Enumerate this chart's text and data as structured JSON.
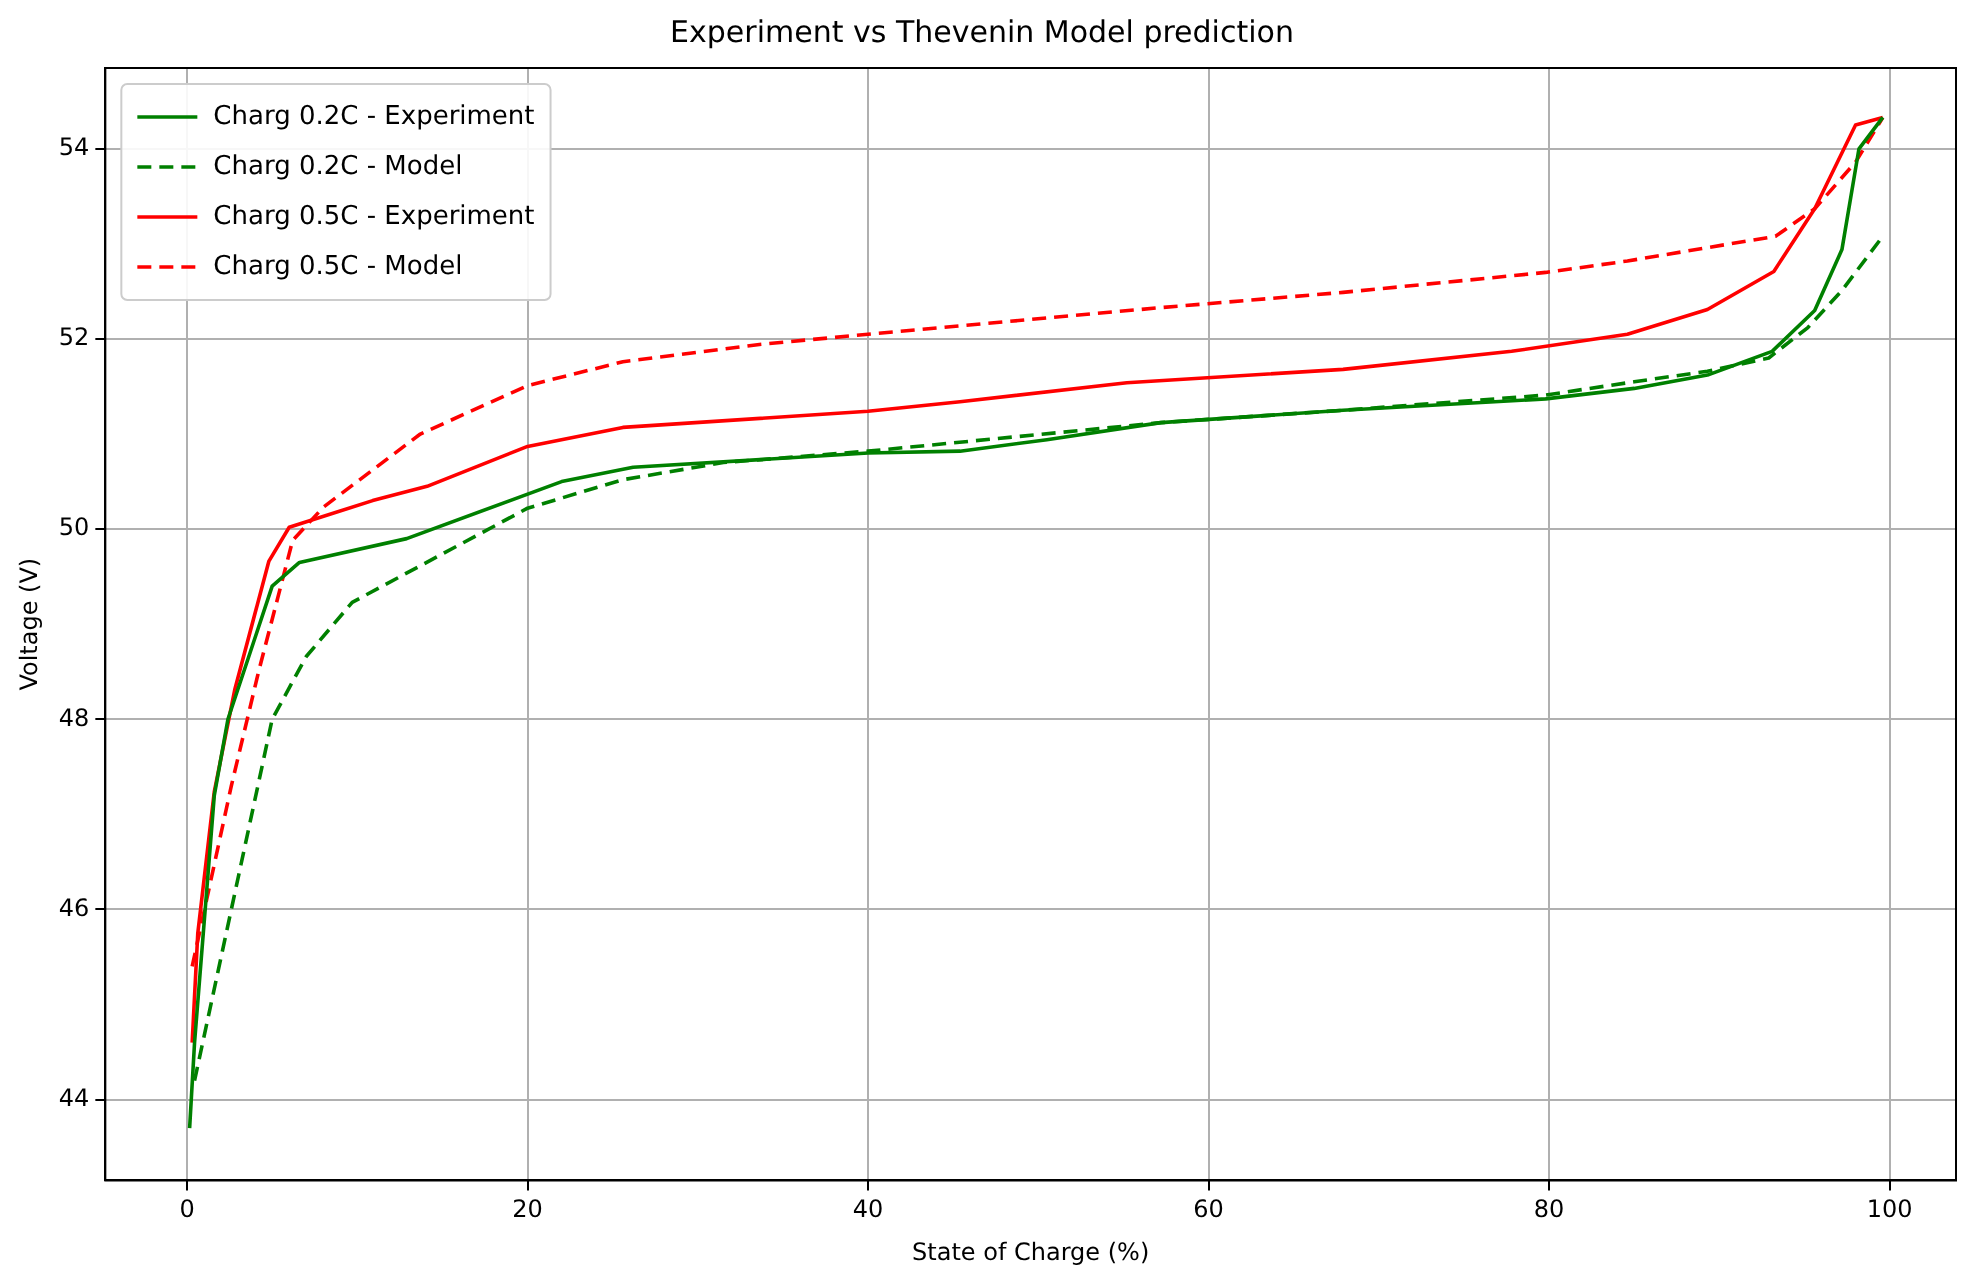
{
  "chart_data": {
    "type": "line",
    "title": "Experiment vs Thevenin Model prediction",
    "xlabel": "State of Charge (%)",
    "ylabel": "Voltage (V)",
    "xlim": [
      -4.8,
      103.9
    ],
    "ylim": [
      43.15,
      54.85
    ],
    "xticks": [
      0,
      20,
      40,
      60,
      80,
      100
    ],
    "yticks": [
      44,
      46,
      48,
      50,
      52,
      54
    ],
    "grid": true,
    "legend": "top left",
    "marker": "none",
    "series": [
      {
        "name": "Charg 0.2C - Experiment",
        "color": "#008000",
        "line_style": "solid",
        "x": [
          0.15,
          0.44,
          1.6,
          2.4,
          5.0,
          6.6,
          12.9,
          22,
          26.2,
          40,
          45.4,
          50.5,
          57.2,
          67.9,
          79.8,
          85,
          89.3,
          93.1,
          95.6,
          97.2,
          98.2,
          99.6
        ],
        "values": [
          43.7,
          44.6,
          47.2,
          48.0,
          49.4,
          49.65,
          49.9,
          50.5,
          50.65,
          50.8,
          50.82,
          50.94,
          51.12,
          51.25,
          51.37,
          51.48,
          51.62,
          51.87,
          52.3,
          52.94,
          54.0,
          54.33
        ]
      },
      {
        "name": "Charg 0.2C - Model",
        "color": "#008000",
        "line_style": "dashed",
        "x": [
          0.44,
          2.6,
          5.0,
          7.0,
          9.7,
          20,
          25.6,
          31.5,
          40,
          57.2,
          67.9,
          79.8,
          85,
          89.3,
          92.9,
          95.2,
          97.2,
          99.6
        ],
        "values": [
          44.2,
          46.0,
          48.0,
          48.66,
          49.23,
          50.22,
          50.52,
          50.7,
          50.82,
          51.12,
          51.25,
          51.41,
          51.55,
          51.66,
          51.8,
          52.12,
          52.51,
          53.08
        ]
      },
      {
        "name": "Charg 0.5C - Experiment",
        "color": "#ff0000",
        "line_style": "solid",
        "x": [
          0.3,
          0.63,
          1.6,
          2.8,
          4.8,
          6.0,
          10.9,
          14.1,
          20,
          25.6,
          40,
          45.4,
          55.2,
          67.9,
          77.8,
          84.6,
          89.3,
          93.2,
          95.6,
          98,
          99.6
        ],
        "values": [
          44.6,
          45.75,
          47.24,
          48.31,
          49.66,
          50.02,
          50.3,
          50.45,
          50.87,
          51.07,
          51.24,
          51.34,
          51.54,
          51.68,
          51.87,
          52.05,
          52.31,
          52.71,
          53.37,
          54.25,
          54.33
        ]
      },
      {
        "name": "Charg 0.5C - Model",
        "color": "#ff0000",
        "line_style": "dashed",
        "x": [
          0.3,
          2.6,
          4.2,
          6.2,
          8.0,
          13.7,
          20,
          25.6,
          33.5,
          40,
          57.2,
          67.9,
          79.8,
          84.6,
          93.3,
          95.6,
          98,
          99.6
        ],
        "values": [
          45.4,
          47.3,
          48.5,
          49.88,
          50.23,
          51.0,
          51.51,
          51.76,
          51.94,
          52.05,
          52.33,
          52.49,
          52.7,
          52.82,
          53.08,
          53.37,
          53.86,
          54.33
        ]
      }
    ]
  }
}
